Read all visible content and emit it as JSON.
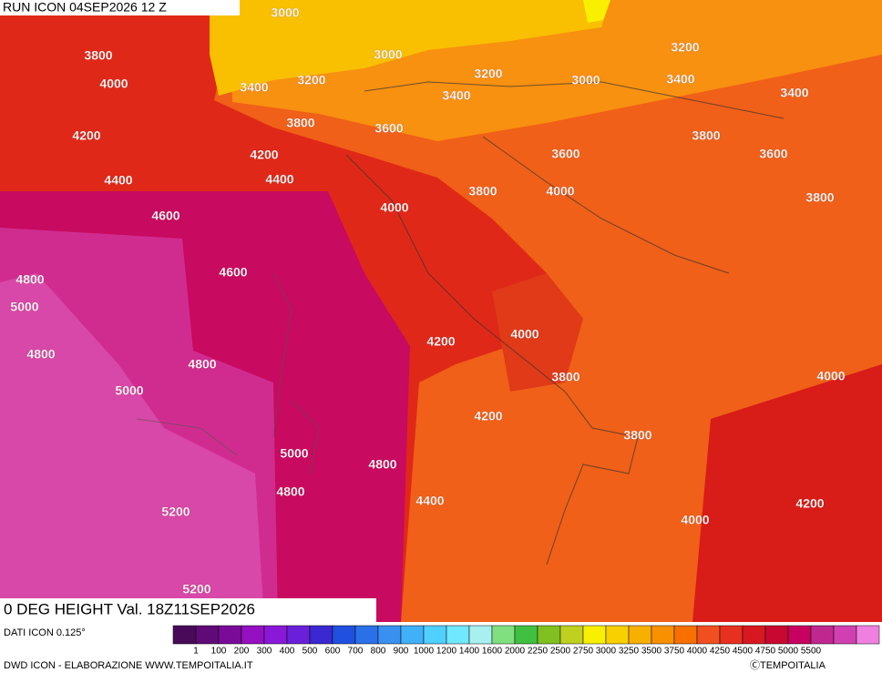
{
  "header": {
    "run": "RUN ICON 04SEP2026 12 Z"
  },
  "map": {
    "title": "0 DEG HEIGHT Val. 18Z11SEP2026",
    "contour_labels": [
      3000,
      3800,
      4000,
      3000,
      3200,
      3400,
      3200,
      3400,
      3000,
      3200,
      3400,
      3400,
      3800,
      3600,
      3800,
      3600,
      4200,
      4200,
      3600,
      4400,
      4400,
      3800,
      4000,
      3800,
      4600,
      4000,
      4600,
      4800,
      5000,
      4200,
      4000,
      4800,
      4800,
      3800,
      4000,
      5000,
      4200,
      3800,
      5000,
      4800,
      4800,
      4400,
      4200,
      5200,
      4000,
      5200
    ]
  },
  "legend": {
    "source": "DATI ICON 0.125°",
    "colors": [
      "#4a0a5a",
      "#600a78",
      "#7a0a98",
      "#9410c0",
      "#8a18d8",
      "#6a20d8",
      "#3a28d0",
      "#2050e0",
      "#2a70e8",
      "#3a90f0",
      "#40b0f8",
      "#50d0ff",
      "#70e8ff",
      "#a8f0f0",
      "#80e080",
      "#40c040",
      "#80c020",
      "#c0d020",
      "#f8f000",
      "#f8d000",
      "#f8b000",
      "#f89000",
      "#f87000",
      "#f05020",
      "#e83020",
      "#d81820",
      "#c80830",
      "#c80060",
      "#c02890",
      "#d040b0",
      "#f080e0"
    ],
    "labels": [
      1,
      100,
      200,
      300,
      400,
      500,
      600,
      700,
      800,
      900,
      1000,
      1200,
      1400,
      1600,
      2000,
      2250,
      2500,
      2750,
      3000,
      3250,
      3500,
      3750,
      4000,
      4250,
      4500,
      4750,
      5000,
      5500
    ]
  },
  "footer": {
    "credit": "DWD ICON - ELABORAZIONE WWW.TEMPOITALIA.IT",
    "copyright": "ⒸTEMPOITALIA"
  }
}
